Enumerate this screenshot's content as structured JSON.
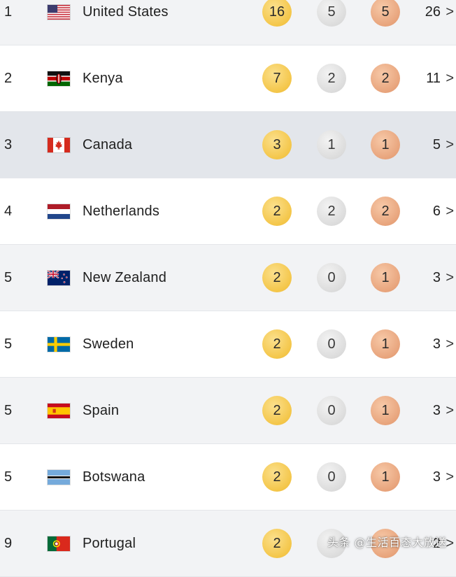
{
  "rows": [
    {
      "rank": "1",
      "country": "United States",
      "flag": "us-flag",
      "gold": "16",
      "silver": "5",
      "bronze": "5",
      "total": "26",
      "style": "alt"
    },
    {
      "rank": "2",
      "country": "Kenya",
      "flag": "kenya-flag",
      "gold": "7",
      "silver": "2",
      "bronze": "2",
      "total": "11",
      "style": "plain"
    },
    {
      "rank": "3",
      "country": "Canada",
      "flag": "canada-flag",
      "gold": "3",
      "silver": "1",
      "bronze": "1",
      "total": "5",
      "style": "hl"
    },
    {
      "rank": "4",
      "country": "Netherlands",
      "flag": "netherlands-flag",
      "gold": "2",
      "silver": "2",
      "bronze": "2",
      "total": "6",
      "style": "plain"
    },
    {
      "rank": "5",
      "country": "New Zealand",
      "flag": "new-zealand-flag",
      "gold": "2",
      "silver": "0",
      "bronze": "1",
      "total": "3",
      "style": "alt"
    },
    {
      "rank": "5",
      "country": "Sweden",
      "flag": "sweden-flag",
      "gold": "2",
      "silver": "0",
      "bronze": "1",
      "total": "3",
      "style": "plain"
    },
    {
      "rank": "5",
      "country": "Spain",
      "flag": "spain-flag",
      "gold": "2",
      "silver": "0",
      "bronze": "1",
      "total": "3",
      "style": "alt"
    },
    {
      "rank": "5",
      "country": "Botswana",
      "flag": "botswana-flag",
      "gold": "2",
      "silver": "0",
      "bronze": "1",
      "total": "3",
      "style": "plain"
    },
    {
      "rank": "9",
      "country": "Portugal",
      "flag": "portugal-flag",
      "gold": "2",
      "silver": "",
      "bronze": "",
      "total": "2",
      "style": "alt"
    }
  ],
  "chevron": ">",
  "colors": {
    "gold": "#f4c649",
    "silver": "#dcdcdc",
    "bronze": "#e8a47c",
    "row_alt": "#f2f3f5",
    "row_highlight": "#e3e6eb"
  },
  "watermark": "头条 @生活百态大放送"
}
